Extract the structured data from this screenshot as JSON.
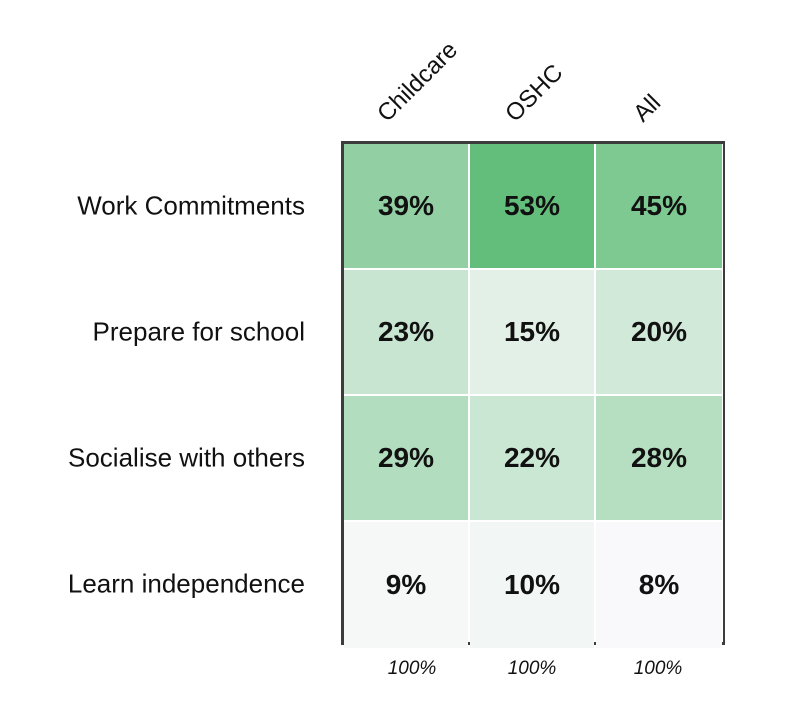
{
  "chart_data": {
    "type": "heatmap",
    "columns": [
      "Childcare",
      "OSHC",
      "All"
    ],
    "rows": [
      "Work Commitments",
      "Prepare for school",
      "Socialise with others",
      "Learn independence"
    ],
    "values": [
      [
        39,
        53,
        45
      ],
      [
        23,
        15,
        20
      ],
      [
        29,
        22,
        28
      ],
      [
        9,
        10,
        8
      ]
    ],
    "value_labels": [
      [
        "39%",
        "53%",
        "45%"
      ],
      [
        "23%",
        "15%",
        "20%"
      ],
      [
        "29%",
        "22%",
        "28%"
      ],
      [
        "9%",
        "10%",
        "8%"
      ]
    ],
    "column_totals": [
      "100%",
      "100%",
      "100%"
    ],
    "unit": "%",
    "colors": {
      "low": "#f9f9fb",
      "high": "#63be7b",
      "border": "#3c3c3c"
    }
  }
}
